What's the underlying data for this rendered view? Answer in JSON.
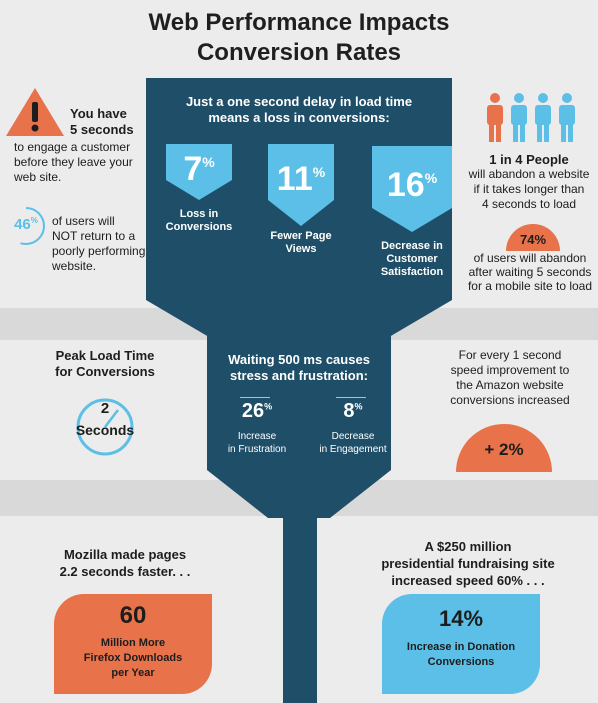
{
  "title": {
    "line1": "Web Performance Impacts",
    "line2": "Conversion Rates"
  },
  "colors": {
    "navy": "#1f4e68",
    "blue": "#5bbfe7",
    "orange": "#e8724a",
    "band": "#d9d9d9",
    "background": "#ececec"
  },
  "left_top": {
    "warning_icon": "warning-triangle-icon",
    "headline": "You have",
    "headline2": "5 seconds",
    "body1": "to engage a customer",
    "body2": "before they leave your",
    "body3": "web site."
  },
  "left_stat": {
    "value": "46",
    "unit": "%",
    "line1": "of users will",
    "line2": "NOT return to a",
    "line3": "poorly performing",
    "line4": "website."
  },
  "funnel": {
    "heading1": "Just a one second delay in load time",
    "heading2": "means a loss in conversions:",
    "stats": [
      {
        "value": "7",
        "unit": "%",
        "label1": "Loss in",
        "label2": "Conversions",
        "label3": ""
      },
      {
        "value": "11",
        "unit": "%",
        "label1": "Fewer Page",
        "label2": "Views",
        "label3": ""
      },
      {
        "value": "16",
        "unit": "%",
        "label1": "Decrease in",
        "label2": "Customer",
        "label3": "Satisfaction"
      }
    ]
  },
  "right_top": {
    "people_icon": "people-icon",
    "headline": "1 in 4 People",
    "line1": "will abandon a website",
    "line2": "if it takes longer than",
    "line3": "4 seconds to load"
  },
  "right_stat": {
    "value": "74%",
    "line1": "of users will abandon",
    "line2": "after waiting 5 seconds",
    "line3": "for a mobile site to load"
  },
  "peak": {
    "heading1": "Peak Load Time",
    "heading2": "for Conversions",
    "clock_icon": "clock-icon",
    "value": "2",
    "unit": "Seconds"
  },
  "waiting": {
    "heading1": "Waiting 500 ms causes",
    "heading2": "stress and frustration:",
    "stats": [
      {
        "value": "26",
        "unit": "%",
        "label1": "Increase",
        "label2": "in Frustration"
      },
      {
        "value": "8",
        "unit": "%",
        "label1": "Decrease",
        "label2": "in Engagement"
      }
    ]
  },
  "amazon": {
    "line1": "For every 1 second",
    "line2": "speed improvement to",
    "line3": "the Amazon website",
    "line4": "conversions increased",
    "value": "+ 2%"
  },
  "mozilla": {
    "line1": "Mozilla made pages",
    "line2": "2.2 seconds faster. . .",
    "value": "60",
    "label1": "Million More",
    "label2": "Firefox Downloads",
    "label3": "per Year"
  },
  "fundraising": {
    "line1": "A $250 million",
    "line2": "presidential fundraising site",
    "line3": "increased speed 60% . . .",
    "value": "14%",
    "label1": "Increase in Donation",
    "label2": "Conversions"
  }
}
